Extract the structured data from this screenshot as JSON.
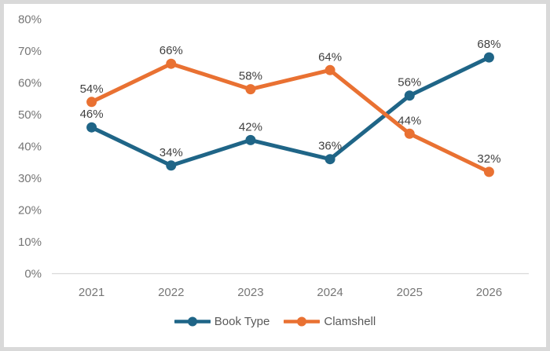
{
  "chart_data": {
    "type": "line",
    "title": "",
    "categories": [
      "2021",
      "2022",
      "2023",
      "2024",
      "2025",
      "2026"
    ],
    "series": [
      {
        "name": "Book Type",
        "color": "#1f6587",
        "values": [
          46,
          34,
          42,
          36,
          56,
          68
        ],
        "labels": [
          "46%",
          "34%",
          "42%",
          "36%",
          "56%",
          "68%"
        ]
      },
      {
        "name": "Clamshell",
        "color": "#e97132",
        "values": [
          54,
          66,
          58,
          64,
          44,
          32
        ],
        "labels": [
          "54%",
          "66%",
          "58%",
          "64%",
          "44%",
          "32%"
        ]
      }
    ],
    "y_axis": {
      "ticks": [
        {
          "value": 0,
          "label": "0%"
        },
        {
          "value": 10,
          "label": "10%"
        },
        {
          "value": 20,
          "label": "20%"
        },
        {
          "value": 30,
          "label": "30%"
        },
        {
          "value": 40,
          "label": "40%"
        },
        {
          "value": 50,
          "label": "50%"
        },
        {
          "value": 60,
          "label": "60%"
        },
        {
          "value": 70,
          "label": "70%"
        },
        {
          "value": 80,
          "label": "80%"
        }
      ]
    },
    "ylim": [
      0,
      80
    ],
    "xlabel": "",
    "ylabel": "",
    "grid": false,
    "legend_position": "bottom",
    "axis_line_color": "#d9d9d9"
  }
}
